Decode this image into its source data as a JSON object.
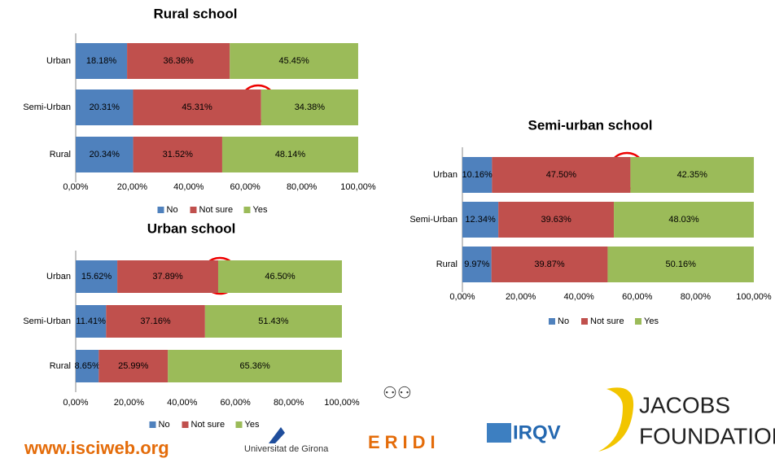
{
  "chart_data": [
    {
      "type": "bar",
      "orientation": "horizontal",
      "stacked": true,
      "title": "Rural school",
      "categories": [
        "Urban",
        "Semi-Urban",
        "Rural"
      ],
      "series": [
        {
          "name": "No",
          "color": "#4f81bd",
          "values": [
            18.18,
            20.31,
            20.34
          ],
          "value_labels": [
            "18.18%",
            "20.31%",
            "20.34%"
          ]
        },
        {
          "name": "Not sure",
          "color": "#c0504d",
          "values": [
            36.36,
            45.31,
            31.52
          ],
          "value_labels": [
            "36.36%",
            "45.31%",
            "31.52%"
          ]
        },
        {
          "name": "Yes",
          "color": "#9bbb59",
          "values": [
            45.45,
            34.38,
            48.14
          ],
          "value_labels": [
            "45.45%",
            "34.38%",
            "48.14%"
          ]
        }
      ],
      "xlim": [
        0,
        100
      ],
      "xticks": [
        {
          "value": 0,
          "label": "0,00%"
        },
        {
          "value": 20,
          "label": "20,00%"
        },
        {
          "value": 40,
          "label": "40,00%"
        },
        {
          "value": 60,
          "label": "60,00%"
        },
        {
          "value": 80,
          "label": "80,00%"
        },
        {
          "value": 100,
          "label": "100,00%"
        }
      ],
      "legend": "bottom"
    },
    {
      "type": "bar",
      "orientation": "horizontal",
      "stacked": true,
      "title": "Urban school",
      "categories": [
        "Urban",
        "Semi-Urban",
        "Rural"
      ],
      "series": [
        {
          "name": "No",
          "color": "#4f81bd",
          "values": [
            15.62,
            11.41,
            8.65
          ],
          "value_labels": [
            "15.62%",
            "11.41%",
            "8.65%"
          ]
        },
        {
          "name": "Not sure",
          "color": "#c0504d",
          "values": [
            37.89,
            37.16,
            25.99
          ],
          "value_labels": [
            "37.89%",
            "37.16%",
            "25.99%"
          ]
        },
        {
          "name": "Yes",
          "color": "#9bbb59",
          "values": [
            46.5,
            51.43,
            65.36
          ],
          "value_labels": [
            "46.50%",
            "51.43%",
            "65.36%"
          ]
        }
      ],
      "xlim": [
        0,
        100
      ],
      "xticks": [
        {
          "value": 0,
          "label": "0,00%"
        },
        {
          "value": 20,
          "label": "20,00%"
        },
        {
          "value": 40,
          "label": "40,00%"
        },
        {
          "value": 60,
          "label": "60,00%"
        },
        {
          "value": 80,
          "label": "80,00%"
        },
        {
          "value": 100,
          "label": "100,00%"
        }
      ],
      "legend": "bottom"
    },
    {
      "type": "bar",
      "orientation": "horizontal",
      "stacked": true,
      "title": "Semi-urban school",
      "categories": [
        "Urban",
        "Semi-Urban",
        "Rural"
      ],
      "series": [
        {
          "name": "No",
          "color": "#4f81bd",
          "values": [
            10.16,
            12.34,
            9.97
          ],
          "value_labels": [
            "10.16%",
            "12.34%",
            "9.97%"
          ]
        },
        {
          "name": "Not sure",
          "color": "#c0504d",
          "values": [
            47.5,
            39.63,
            39.87
          ],
          "value_labels": [
            "47.50%",
            "39.63%",
            "39.87%"
          ]
        },
        {
          "name": "Yes",
          "color": "#9bbb59",
          "values": [
            42.35,
            48.03,
            50.16
          ],
          "value_labels": [
            "42.35%",
            "48.03%",
            "50.16%"
          ]
        }
      ],
      "xlim": [
        0,
        100
      ],
      "xticks": [
        {
          "value": 0,
          "label": "0,00%"
        },
        {
          "value": 20,
          "label": "20,00%"
        },
        {
          "value": 40,
          "label": "40,00%"
        },
        {
          "value": 60,
          "label": "60,00%"
        },
        {
          "value": 80,
          "label": "80,00%"
        },
        {
          "value": 100,
          "label": "100,00%"
        }
      ],
      "legend": "bottom"
    }
  ],
  "footer": {
    "website": "www.isciweb.org",
    "university": "Universitat de Girona",
    "eridi": "ERIDI",
    "irqv": "IRQV",
    "jacobs": "JACOBS",
    "foundation": "FOUNDATION"
  }
}
